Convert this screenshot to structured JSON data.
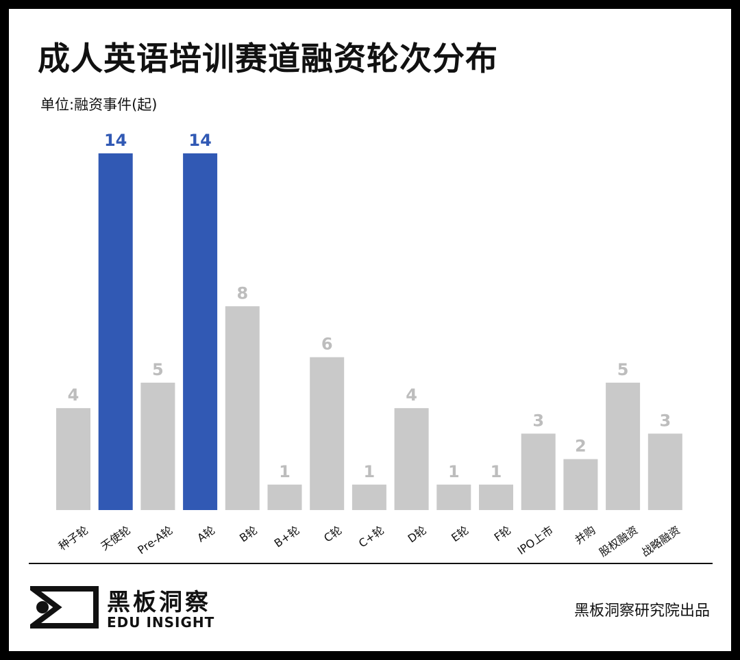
{
  "header": {
    "title": "成人英语培训赛道融资轮次分布",
    "unit_label": "单位:融资事件(起)"
  },
  "footer": {
    "logo_cn": "黑板洞察",
    "logo_en": "EDU INSIGHT",
    "credit": "黑板洞察研究院出品",
    "logo_icon": "eye-bracket-logo-icon"
  },
  "colors": {
    "highlight": "#3159b4",
    "default_bar": "#c9c9c9",
    "default_label": "#bdbdbd",
    "text": "#111111",
    "frame": "#000000"
  },
  "chart_data": {
    "type": "bar",
    "title": "成人英语培训赛道融资轮次分布",
    "ylabel": "单位:融资事件(起)",
    "xlabel": "",
    "categories": [
      "种子轮",
      "天使轮",
      "Pre-A轮",
      "A轮",
      "B轮",
      "B+轮",
      "C轮",
      "C+轮",
      "D轮",
      "E轮",
      "F轮",
      "IPO上市",
      "并购",
      "股权融资",
      "战略融资"
    ],
    "values": [
      4,
      14,
      5,
      14,
      8,
      1,
      6,
      1,
      4,
      1,
      1,
      3,
      2,
      5,
      3
    ],
    "highlighted": [
      "天使轮",
      "A轮"
    ],
    "ylim": [
      0,
      14
    ],
    "grid": false,
    "legend": "none",
    "data_labels": true
  }
}
